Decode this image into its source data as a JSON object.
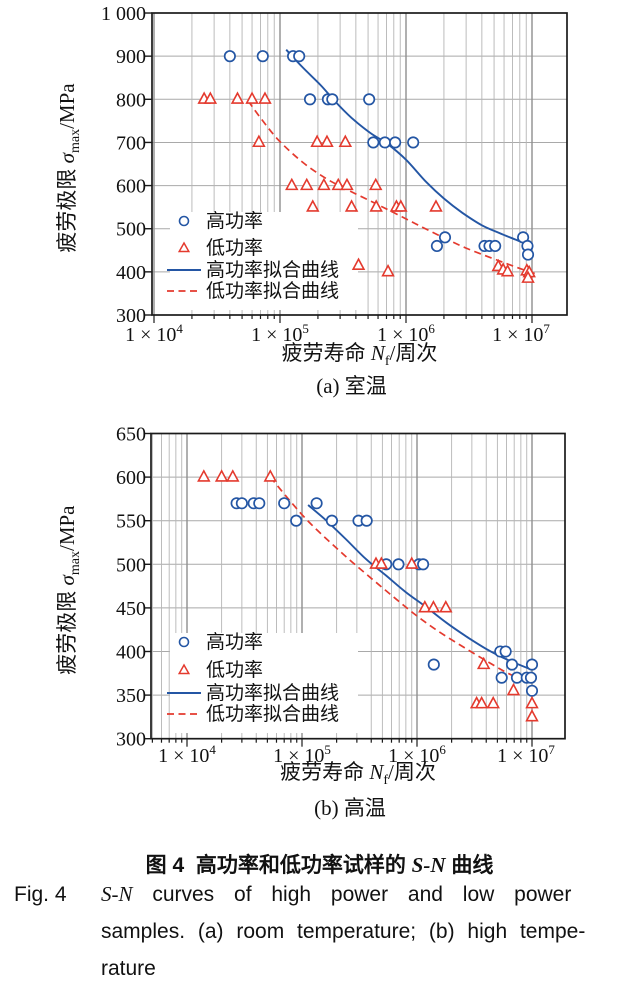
{
  "figure": {
    "caption_zh_prefix": "图 4",
    "caption_zh_mid": "高功率和低功率试样的 ",
    "caption_zh_sn": "S-N",
    "caption_zh_suffix": " 曲线",
    "caption_en": {
      "fig_label": "Fig. 4",
      "line1_sn": "S-N",
      "line1_rest": " curves of high power and low power",
      "line2": "samples. (a) room temperature; (b) high tempe-",
      "line3": "rature"
    }
  },
  "colors": {
    "high_power": "#2456a4",
    "low_power": "#e43a2e",
    "grid_minor": "#b5b5b5",
    "grid_major": "#8f8f8f",
    "axis": "#1a1a1a"
  },
  "chart_data": [
    {
      "id": "a",
      "type": "scatter",
      "subtitle": "(a) 室温",
      "xlabel_parts": {
        "prefix": "疲劳寿命 ",
        "var": "N",
        "sub": "f",
        "suffix": "/周次"
      },
      "ylabel_parts": {
        "prefix": "疲劳极限 ",
        "var": "σ",
        "sub": "max",
        "suffix": "/MPa"
      },
      "x_axis": {
        "scale": "log",
        "tick_exponents": [
          4,
          5,
          6,
          7
        ],
        "tick_base": "1 × 10"
      },
      "y_axis": {
        "range": [
          300,
          1000
        ],
        "gridline_step": 100,
        "tick_labels": [
          "1 000",
          "900",
          "800",
          "700",
          "600",
          "500",
          "400",
          "300"
        ]
      },
      "legend": [
        "高功率",
        "低功率",
        "高功率拟合曲线",
        "低功率拟合曲线"
      ],
      "series": [
        {
          "name": "高功率",
          "kind": "scatter",
          "marker": "circle",
          "color": "#2456a4",
          "points": [
            [
              40000,
              900
            ],
            [
              73000,
              900
            ],
            [
              127000,
              900
            ],
            [
              142000,
              900
            ],
            [
              173000,
              800
            ],
            [
              240000,
              800
            ],
            [
              260000,
              800
            ],
            [
              510000,
              800
            ],
            [
              550000,
              700
            ],
            [
              680000,
              700
            ],
            [
              820000,
              700
            ],
            [
              1140000,
              700
            ],
            [
              1760000,
              460
            ],
            [
              2040000,
              480
            ],
            [
              4200000,
              460
            ],
            [
              4600000,
              460
            ],
            [
              5100000,
              460
            ],
            [
              8500000,
              480
            ],
            [
              9200000,
              460
            ],
            [
              9300000,
              440
            ]
          ]
        },
        {
          "name": "低功率",
          "kind": "scatter",
          "marker": "triangle",
          "color": "#e43a2e",
          "points": [
            [
              25000,
              800
            ],
            [
              28000,
              800
            ],
            [
              46000,
              800
            ],
            [
              60000,
              800
            ],
            [
              76000,
              800
            ],
            [
              68000,
              700
            ],
            [
              197000,
              700
            ],
            [
              236000,
              700
            ],
            [
              330000,
              700
            ],
            [
              124000,
              600
            ],
            [
              163000,
              600
            ],
            [
              223000,
              600
            ],
            [
              290000,
              600
            ],
            [
              340000,
              600
            ],
            [
              575000,
              600
            ],
            [
              182000,
              550
            ],
            [
              370000,
              550
            ],
            [
              580000,
              550
            ],
            [
              840000,
              550
            ],
            [
              910000,
              550
            ],
            [
              1730000,
              550
            ],
            [
              420000,
              415
            ],
            [
              720000,
              400
            ],
            [
              5400000,
              412
            ],
            [
              5900000,
              404
            ],
            [
              6400000,
              400
            ],
            [
              9100000,
              402
            ],
            [
              9500000,
              398
            ],
            [
              9300000,
              385
            ]
          ]
        },
        {
          "name": "高功率拟合曲线",
          "kind": "curve",
          "style": "solid",
          "color": "#2456a4",
          "points": [
            [
              112000,
              915
            ],
            [
              150000,
              875
            ],
            [
              210000,
              833
            ],
            [
              270000,
              797
            ],
            [
              370000,
              757
            ],
            [
              520000,
              722
            ],
            [
              710000,
              697
            ],
            [
              1000000,
              660
            ],
            [
              1450000,
              608
            ],
            [
              2000000,
              570
            ],
            [
              2800000,
              537
            ],
            [
              4000000,
              508
            ],
            [
              5500000,
              490
            ],
            [
              7500000,
              474
            ],
            [
              10200000,
              457
            ]
          ]
        },
        {
          "name": "低功率拟合曲线",
          "kind": "curve",
          "style": "dashed",
          "color": "#e43a2e",
          "points": [
            [
              56000,
              796
            ],
            [
              70000,
              757
            ],
            [
              97000,
              706
            ],
            [
              150000,
              655
            ],
            [
              230000,
              617
            ],
            [
              350000,
              589
            ],
            [
              550000,
              561
            ],
            [
              790000,
              538
            ],
            [
              1200000,
              511
            ],
            [
              1900000,
              482
            ],
            [
              3000000,
              455
            ],
            [
              4800000,
              432
            ],
            [
              7000000,
              414
            ],
            [
              10500000,
              396
            ]
          ]
        }
      ]
    },
    {
      "id": "b",
      "type": "scatter",
      "subtitle": "(b) 高温",
      "xlabel_parts": {
        "prefix": "疲劳寿命 ",
        "var": "N",
        "sub": "f",
        "suffix": "/周次"
      },
      "ylabel_parts": {
        "prefix": "疲劳极限 ",
        "var": "σ",
        "sub": "max",
        "suffix": "/MPa"
      },
      "x_axis": {
        "scale": "log",
        "tick_exponents": [
          4,
          5,
          6,
          7
        ],
        "tick_base": "1 × 10"
      },
      "y_axis": {
        "range": [
          300,
          650
        ],
        "gridline_step": 50,
        "tick_labels": [
          "650",
          "600",
          "550",
          "500",
          "450",
          "400",
          "350",
          "300"
        ]
      },
      "legend": [
        "高功率",
        "低功率",
        "高功率拟合曲线",
        "低功率拟合曲线"
      ],
      "series": [
        {
          "name": "高功率",
          "kind": "scatter",
          "marker": "circle",
          "color": "#2456a4",
          "points": [
            [
              27000,
              570
            ],
            [
              30000,
              570
            ],
            [
              38000,
              570
            ],
            [
              42500,
              570
            ],
            [
              70000,
              570
            ],
            [
              134000,
              570
            ],
            [
              89000,
              550
            ],
            [
              182000,
              550
            ],
            [
              310000,
              550
            ],
            [
              365000,
              550
            ],
            [
              540000,
              500
            ],
            [
              690000,
              500
            ],
            [
              1040000,
              500
            ],
            [
              1130000,
              500
            ],
            [
              1400000,
              385
            ],
            [
              5300000,
              400
            ],
            [
              5900000,
              400
            ],
            [
              6700000,
              385
            ],
            [
              5450000,
              370
            ],
            [
              7400000,
              370
            ],
            [
              9000000,
              370
            ],
            [
              9800000,
              370
            ],
            [
              10000000,
              385
            ],
            [
              10000000,
              355
            ]
          ]
        },
        {
          "name": "低功率",
          "kind": "scatter",
          "marker": "triangle",
          "color": "#e43a2e",
          "points": [
            [
              14000,
              600
            ],
            [
              20000,
              600
            ],
            [
              25000,
              600
            ],
            [
              53000,
              600
            ],
            [
              440000,
              500
            ],
            [
              490000,
              500
            ],
            [
              900000,
              500
            ],
            [
              1170000,
              450
            ],
            [
              1390000,
              450
            ],
            [
              1780000,
              450
            ],
            [
              3800000,
              385
            ],
            [
              6900000,
              355
            ],
            [
              3300000,
              340
            ],
            [
              3650000,
              340
            ],
            [
              4600000,
              340
            ],
            [
              10000000,
              340
            ],
            [
              10000000,
              325
            ]
          ]
        },
        {
          "name": "高功率拟合曲线",
          "kind": "curve",
          "style": "solid",
          "color": "#2456a4",
          "points": [
            [
              113000,
              568
            ],
            [
              160000,
              551
            ],
            [
              240000,
              529
            ],
            [
              360000,
              506
            ],
            [
              540000,
              487
            ],
            [
              800000,
              468
            ],
            [
              1200000,
              451
            ],
            [
              1800000,
              433
            ],
            [
              2700000,
              417
            ],
            [
              4000000,
              403
            ],
            [
              6000000,
              391
            ],
            [
              10000000,
              379
            ]
          ]
        },
        {
          "name": "低功率拟合曲线",
          "kind": "curve",
          "style": "dashed",
          "color": "#e43a2e",
          "points": [
            [
              53000,
              600
            ],
            [
              75000,
              576
            ],
            [
              110000,
              551
            ],
            [
              170000,
              527
            ],
            [
              260000,
              505
            ],
            [
              400000,
              484
            ],
            [
              620000,
              463
            ],
            [
              950000,
              443
            ],
            [
              1500000,
              424
            ],
            [
              2400000,
              407
            ],
            [
              3800000,
              391
            ],
            [
              5800000,
              377
            ],
            [
              8600000,
              366
            ]
          ]
        }
      ]
    }
  ]
}
